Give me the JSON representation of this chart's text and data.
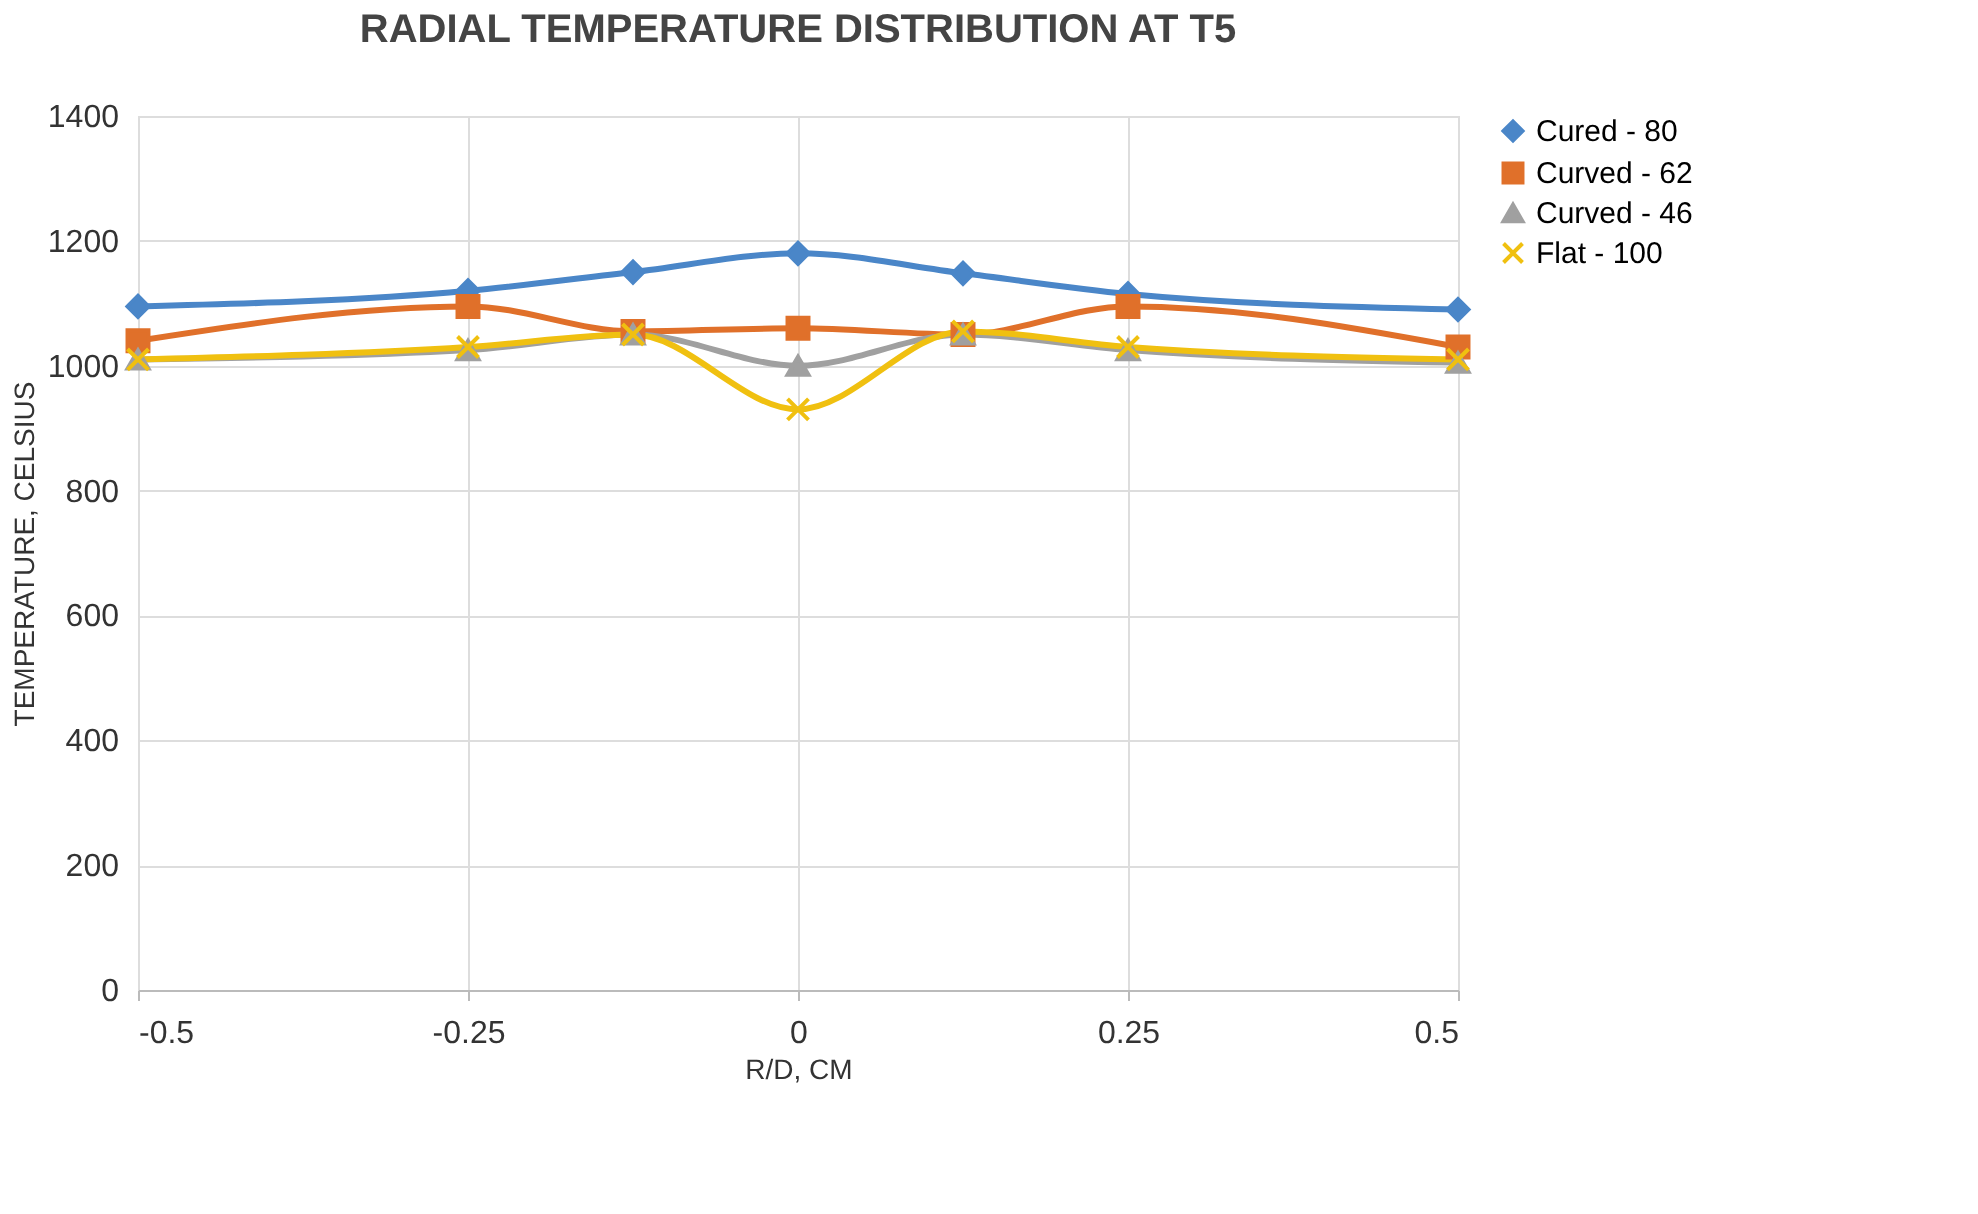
{
  "chart_data": {
    "type": "line",
    "title": "RADIAL TEMPERATURE DISTRIBUTION AT T5",
    "xlabel": "R/D, CM",
    "ylabel": "TEMPERATURE, CELSIUS",
    "x": [
      -0.5,
      -0.25,
      -0.125,
      0,
      0.125,
      0.25,
      0.5
    ],
    "xlim": [
      -0.5,
      0.5
    ],
    "xticks": [
      -0.5,
      -0.25,
      0,
      0.25,
      0.5
    ],
    "ylim": [
      0,
      1400
    ],
    "yticks": [
      0,
      200,
      400,
      600,
      800,
      1000,
      1200,
      1400
    ],
    "grid": true,
    "legend": "right",
    "line_style": "solid",
    "series": [
      {
        "name": "Cured - 80",
        "color": "#4a86c8",
        "marker": "diamond",
        "values": [
          1095,
          1120,
          1150,
          1180,
          1148,
          1115,
          1090
        ]
      },
      {
        "name": "Curved - 62",
        "color": "#e0702a",
        "marker": "square",
        "values": [
          1040,
          1095,
          1055,
          1060,
          1050,
          1095,
          1030
        ]
      },
      {
        "name": "Curved - 46",
        "color": "#a0a0a0",
        "marker": "triangle",
        "values": [
          1010,
          1025,
          1050,
          1000,
          1050,
          1025,
          1005
        ]
      },
      {
        "name": "Flat - 100",
        "color": "#f0c010",
        "marker": "cross",
        "values": [
          1010,
          1030,
          1050,
          930,
          1055,
          1030,
          1010
        ]
      }
    ]
  }
}
